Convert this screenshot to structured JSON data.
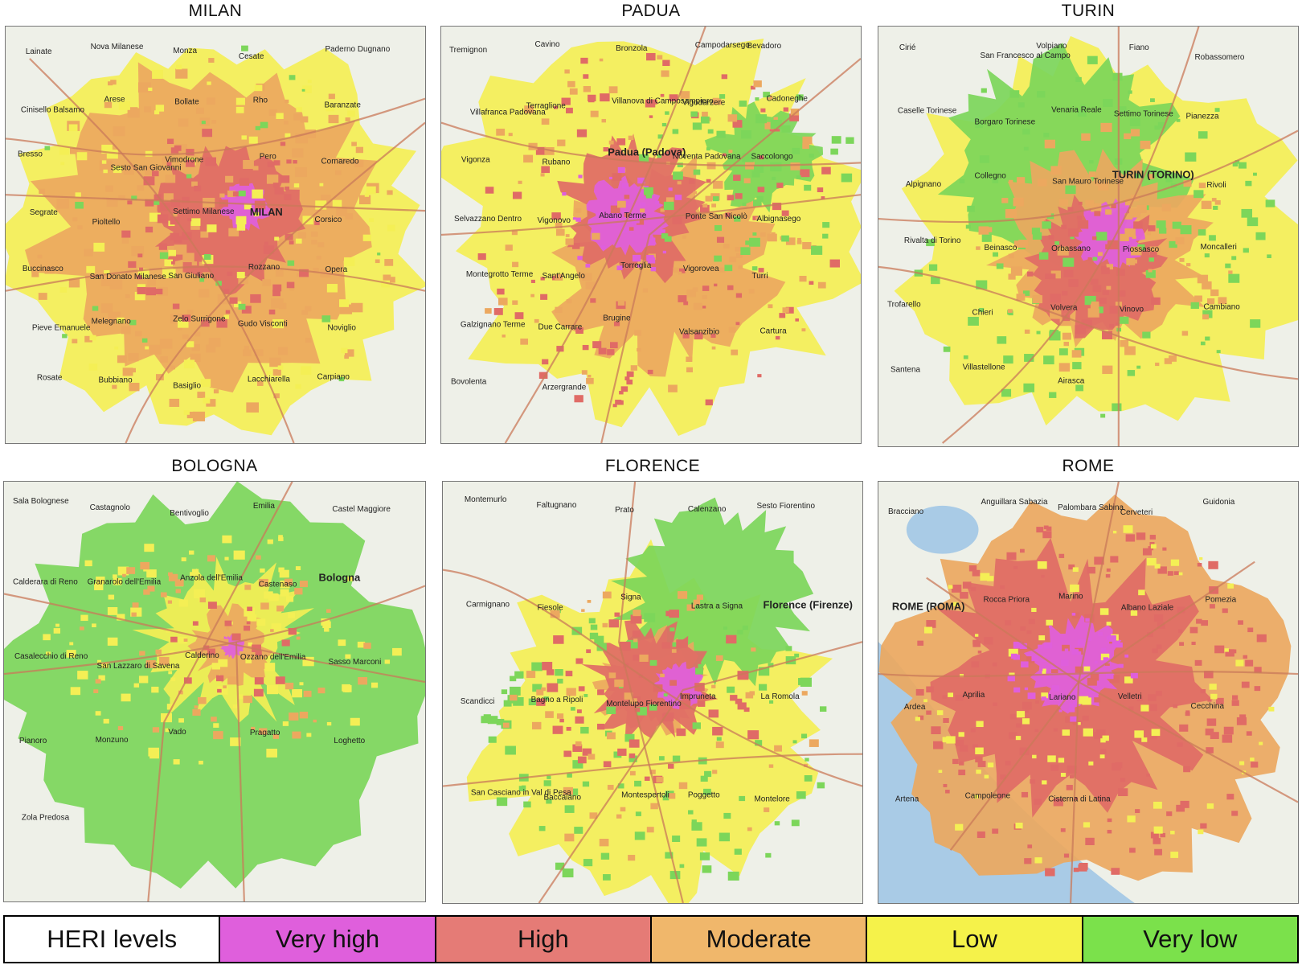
{
  "panels": [
    {
      "title": "MILAN",
      "places": [
        "Lainate",
        "Nova Milanese",
        "Monza",
        "Cesate",
        "Paderno Dugnano",
        "Cinisello Balsamo",
        "Arese",
        "Bollate",
        "Rho",
        "Baranzate",
        "Bresso",
        "Sesto San Giovanni",
        "Vimodrone",
        "Pero",
        "Cornaredo",
        "Segrate",
        "Pioltello",
        "Settimo Milanese",
        "MILAN",
        "Corsico",
        "Buccinasco",
        "San Donato Milanese",
        "San Giuliano",
        "Rozzano",
        "Opera",
        "Pieve Emanuele",
        "Melegnano",
        "Zelo Surrigone",
        "Gudo Visconti",
        "Noviglio",
        "Rosate",
        "Bubbiano",
        "Basiglio",
        "Lacchiarella",
        "Carpiano"
      ]
    },
    {
      "title": "PADUA",
      "places": [
        "Tremignon",
        "Cavino",
        "Bronzola",
        "Campodarsego",
        "Bevadoro",
        "Villafranca Padovana",
        "Terraglione",
        "Villanova di Camposampiero",
        "Vigodarzere",
        "Cadoneghe",
        "Vigonza",
        "Rubano",
        "Padua (Padova)",
        "Noventa Padovana",
        "Saccolongo",
        "Selvazzano Dentro",
        "Vigonovo",
        "Abano Terme",
        "Ponte San Nicolò",
        "Albignasego",
        "Montegrotto Terme",
        "Sant'Angelo",
        "Torreglia",
        "Vigorovea",
        "Turri",
        "Galzignano Terme",
        "Due Carrare",
        "Brugine",
        "Valsanzibio",
        "Cartura",
        "Bovolenta",
        "Arzergrande"
      ]
    },
    {
      "title": "TURIN",
      "places": [
        "Cirié",
        "San Francesco al Campo",
        "Volpiano",
        "Fiano",
        "Robassomero",
        "Caselle Torinese",
        "Borgaro Torinese",
        "Venaria Reale",
        "Settimo Torinese",
        "Pianezza",
        "Alpignano",
        "Collegno",
        "San Mauro Torinese",
        "TURIN (TORINO)",
        "Rivoli",
        "Rivalta di Torino",
        "Beinasco",
        "Orbassano",
        "Piossasco",
        "Moncalleri",
        "Trofarello",
        "Chieri",
        "Volvera",
        "Vinovo",
        "Cambiano",
        "Santena",
        "Villastellone",
        "Airasca"
      ]
    },
    {
      "title": "BOLOGNA",
      "places": [
        "Sala Bolognese",
        "Castagnolo",
        "Bentivoglio",
        "Emilia",
        "Castel Maggiore",
        "Calderara di Reno",
        "Granarolo dell'Emilia",
        "Anzola dell'Emilia",
        "Castenaso",
        "Bologna",
        "Casalecchio di Reno",
        "San Lazzaro di Savena",
        "Calderino",
        "Ozzano dell'Emilia",
        "Sasso Marconi",
        "Pianoro",
        "Monzuno",
        "Vado",
        "Pragatto",
        "Loghetto",
        "Zola Predosa"
      ]
    },
    {
      "title": "FLORENCE",
      "places": [
        "Montemurlo",
        "Faltugnano",
        "Prato",
        "Calenzano",
        "Sesto Fiorentino",
        "Carmignano",
        "Fiesole",
        "Signa",
        "Lastra a Signa",
        "Florence (Firenze)",
        "Scandicci",
        "Bagno a Ripoli",
        "Montelupo Fiorentino",
        "Impruneta",
        "La Romola",
        "San Casciano in Val di Pesa",
        "Baccaiano",
        "Montespertoli",
        "Poggetto",
        "Montelore"
      ]
    },
    {
      "title": "ROME",
      "places": [
        "Bracciano",
        "Anguillara Sabazia",
        "Palombara Sabina",
        "Cerveteri",
        "Guidonia",
        "ROME (ROMA)",
        "Rocca Priora",
        "Marino",
        "Albano Laziale",
        "Pomezia",
        "Ardea",
        "Aprilia",
        "Lariano",
        "Velletri",
        "Cecchina",
        "Artena",
        "Campoleone",
        "Cisterna di Latina"
      ]
    }
  ],
  "legend": {
    "title": "HERI levels",
    "levels": [
      {
        "label": "Very high",
        "color": "#df5fdc"
      },
      {
        "label": "High",
        "color": "#e57b76"
      },
      {
        "label": "Moderate",
        "color": "#f0b76b"
      },
      {
        "label": "Low",
        "color": "#f5f24a"
      },
      {
        "label": "Very low",
        "color": "#7be14b"
      }
    ]
  },
  "colors": {
    "very_high": "#df5fdc",
    "high": "#e06b66",
    "moderate": "#eca85f",
    "low": "#f4ef55",
    "very_low": "#7cd65a",
    "map_bg": "#eef0e8",
    "sea": "#a9cbe6",
    "road": "#c97a5a"
  }
}
